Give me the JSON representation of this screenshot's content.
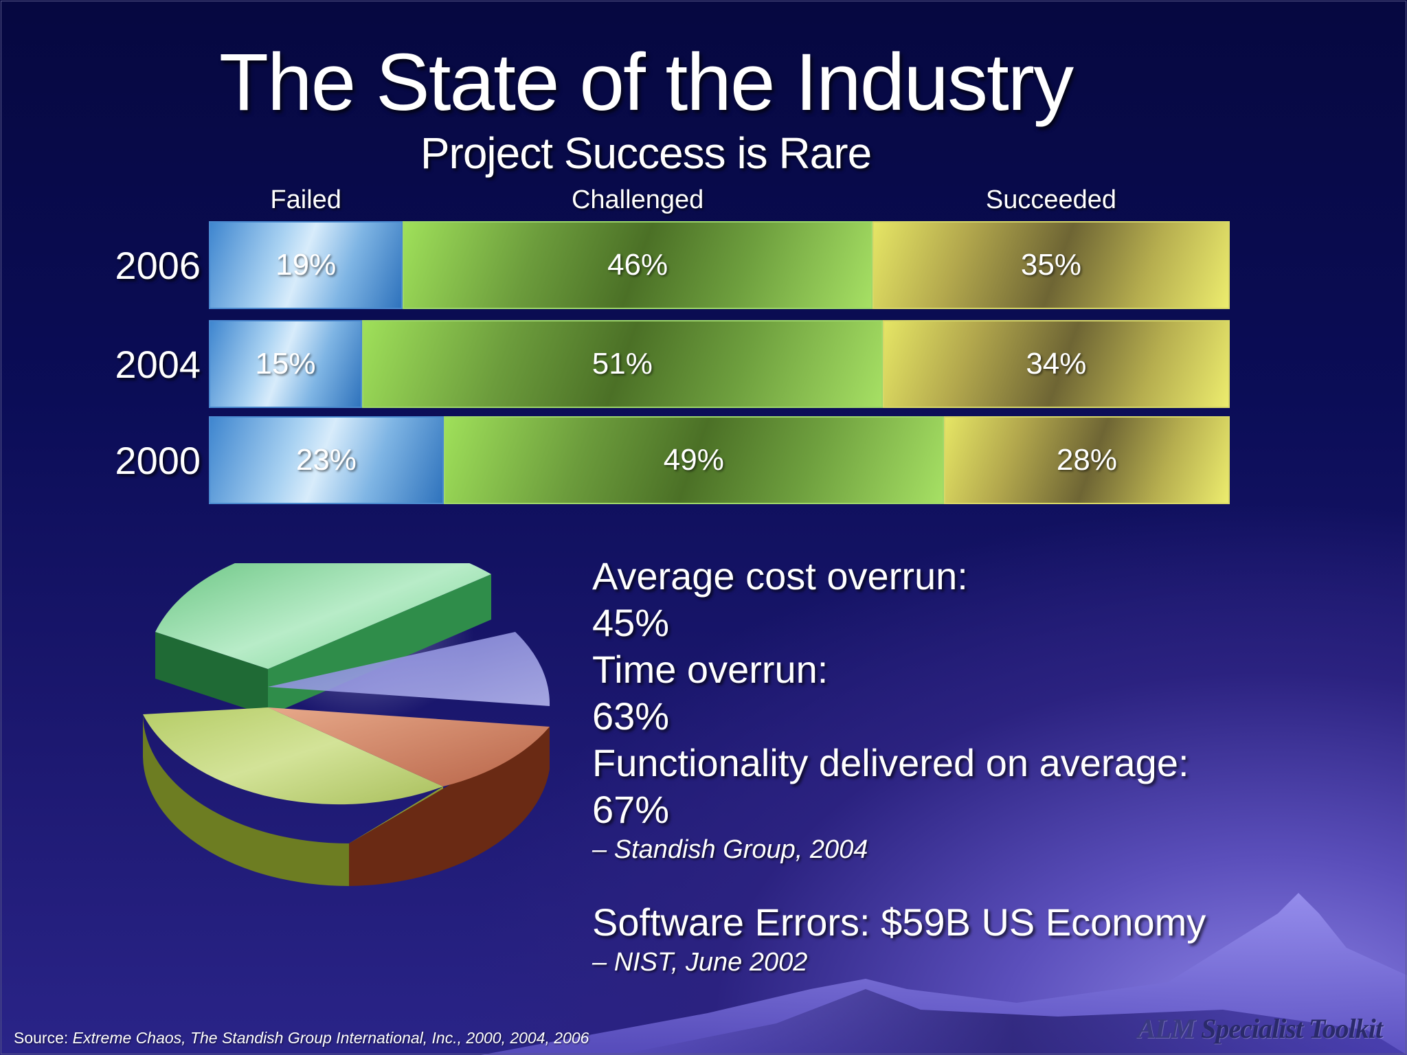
{
  "slide": {
    "title": "The State of the Industry",
    "subtitle": "Project Success is Rare"
  },
  "chart_data": [
    {
      "type": "bar",
      "subtype": "stacked-horizontal-100",
      "categories": [
        "2006",
        "2004",
        "2000"
      ],
      "series": [
        {
          "name": "Failed",
          "values": [
            19,
            15,
            23
          ],
          "color": "#6aa8e0"
        },
        {
          "name": "Challenged",
          "values": [
            46,
            51,
            49
          ],
          "color": "#7fbf4a"
        },
        {
          "name": "Succeeded",
          "values": [
            35,
            34,
            28
          ],
          "color": "#cfcc55"
        }
      ],
      "data_labels": [
        [
          "19%",
          "46%",
          "35%"
        ],
        [
          "15%",
          "51%",
          "34%"
        ],
        [
          "23%",
          "49%",
          "28%"
        ]
      ],
      "legend_placement": "top",
      "grid": false,
      "xlim": [
        0,
        100
      ]
    }
  ],
  "stats": {
    "cost_label": "Average cost overrun:",
    "cost_value": "45%",
    "time_label": "Time overrun:",
    "time_value": "63%",
    "func_label": "Functionality delivered on average:",
    "func_value": "67%",
    "cite1": "– Standish Group, 2004",
    "errors": "Software Errors: $59B US Economy",
    "cite2": "– NIST, June 2002"
  },
  "footer": {
    "source_prefix": "Source: ",
    "source_italic": "Extreme Chaos, The Standish Group International, Inc., 2000, 2004, 2006",
    "brand_lead": "ALM",
    "brand_rest": " Specialist Toolkit"
  },
  "decor": {
    "pie_icon": "3d-pie-chart-icon"
  }
}
